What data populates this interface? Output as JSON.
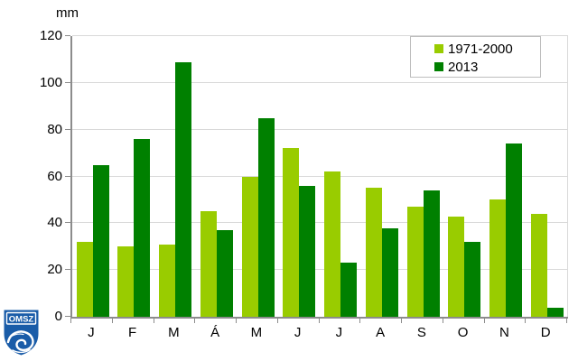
{
  "y_axis_title": "mm",
  "logo": {
    "text": "OMSZ",
    "shield_color": "#1a5ca8",
    "detail_color": "#ffffff"
  },
  "chart_data": {
    "type": "bar",
    "title": "",
    "ylabel": "mm",
    "xlabel": "",
    "categories": [
      "J",
      "F",
      "M",
      "Á",
      "M",
      "J",
      "J",
      "A",
      "S",
      "O",
      "N",
      "D"
    ],
    "series": [
      {
        "name": "1971-2000",
        "color": "#99cc00",
        "values": [
          32,
          30,
          31,
          45,
          60,
          72,
          62,
          55,
          47,
          43,
          50,
          44
        ]
      },
      {
        "name": "2013",
        "color": "#008000",
        "values": [
          65,
          76,
          109,
          37,
          85,
          56,
          23,
          38,
          54,
          32,
          74,
          4
        ]
      }
    ],
    "ylim": [
      0,
      120
    ],
    "yticks": [
      0,
      20,
      40,
      60,
      80,
      100,
      120
    ],
    "grid": true,
    "legend_position": "top-right",
    "axis_color": "#8c8c8c",
    "grid_color": "#d9d9d9"
  }
}
